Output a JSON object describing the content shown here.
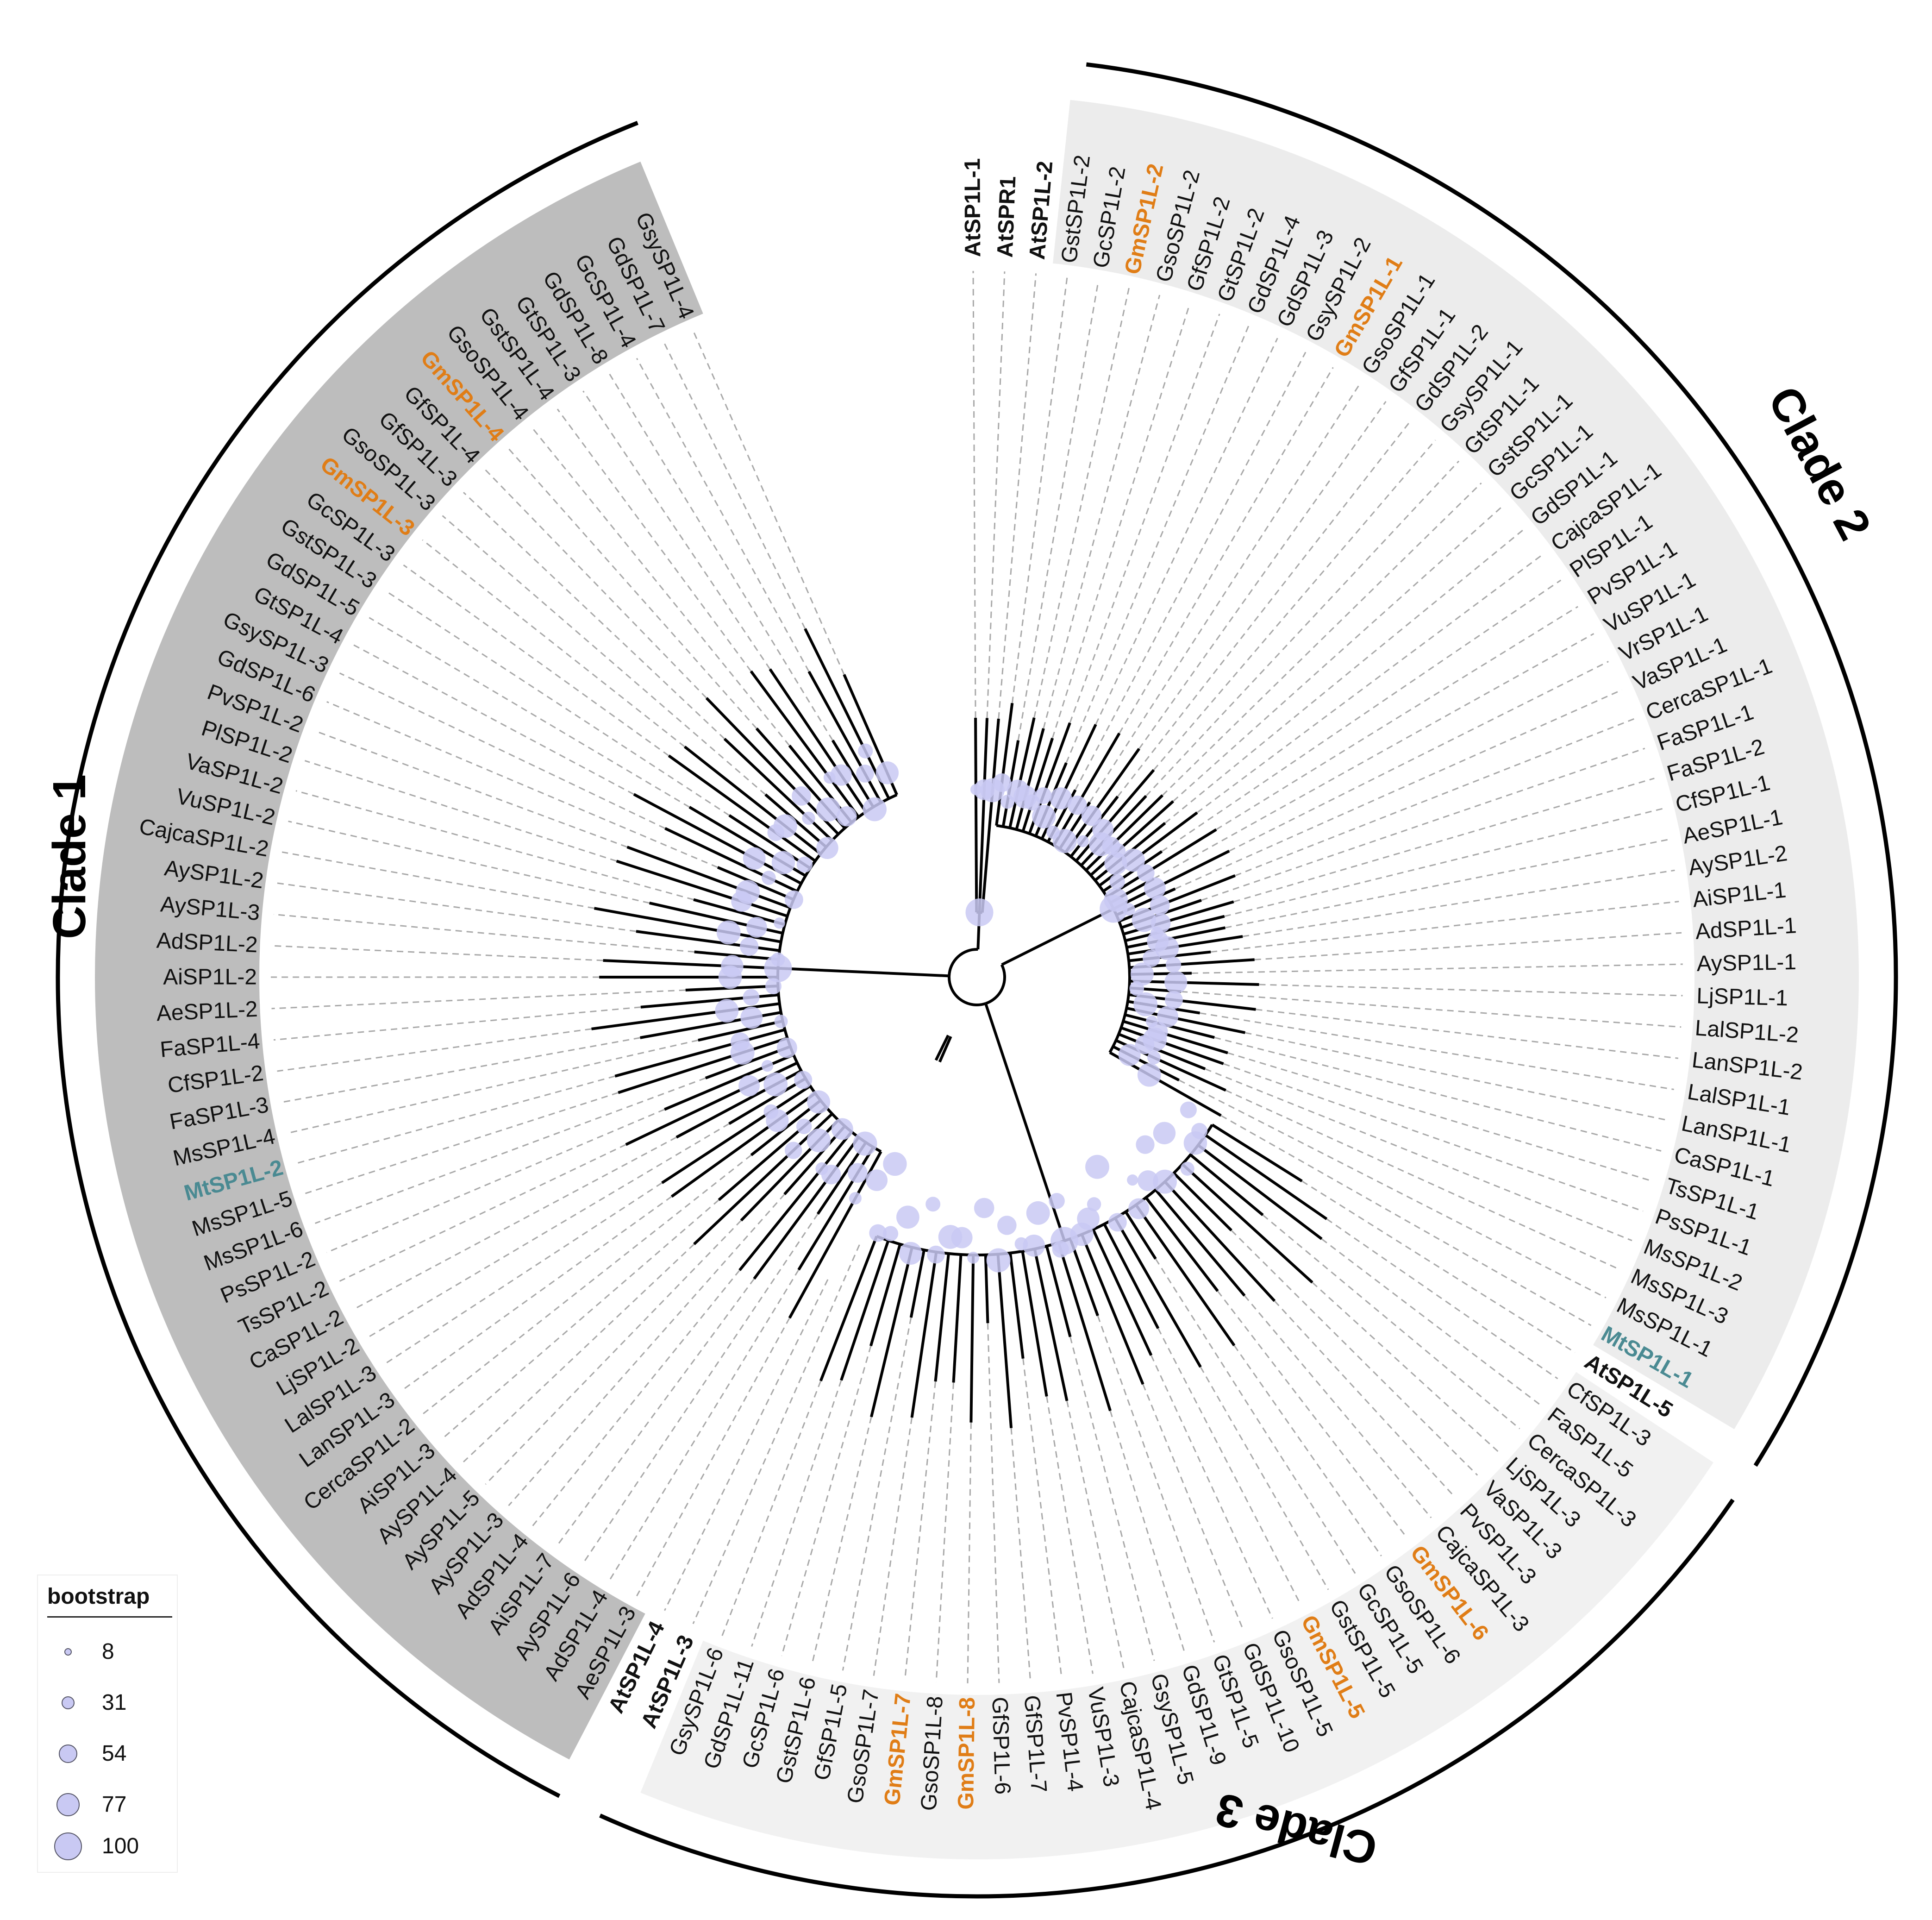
{
  "figure": {
    "clade_labels": [
      "Clade 1",
      "Clade 2",
      "Clade 3"
    ],
    "colors": {
      "soybean": "#e07d16",
      "medicago": "#4a8a92",
      "arabidopsis": "#111111",
      "default": "#111111",
      "clade1_bg": "#bdbdbd",
      "clade2_bg": "#ececec",
      "clade3_bg": "#f1f1f1",
      "bootstrap_fill": "#c9c9f3"
    }
  },
  "leaves": [
    {
      "name": "AtSP1L-1",
      "style": "arabidopsis"
    },
    {
      "name": "AtSPR1",
      "style": "arabidopsis"
    },
    {
      "name": "AtSP1L-2",
      "style": "arabidopsis"
    },
    {
      "name": "GstSP1L-2",
      "style": "default"
    },
    {
      "name": "GcSP1L-2",
      "style": "default"
    },
    {
      "name": "GmSP1L-2",
      "style": "soybean"
    },
    {
      "name": "GsoSP1L-2",
      "style": "default"
    },
    {
      "name": "GfSP1L-2",
      "style": "default"
    },
    {
      "name": "GtSP1L-2",
      "style": "default"
    },
    {
      "name": "GdSP1L-4",
      "style": "default"
    },
    {
      "name": "GdSP1L-3",
      "style": "default"
    },
    {
      "name": "GsySP1L-2",
      "style": "default"
    },
    {
      "name": "GmSP1L-1",
      "style": "soybean"
    },
    {
      "name": "GsoSP1L-1",
      "style": "default"
    },
    {
      "name": "GfSP1L-1",
      "style": "default"
    },
    {
      "name": "GdSP1L-2",
      "style": "default"
    },
    {
      "name": "GsySP1L-1",
      "style": "default"
    },
    {
      "name": "GtSP1L-1",
      "style": "default"
    },
    {
      "name": "GstSP1L-1",
      "style": "default"
    },
    {
      "name": "GcSP1L-1",
      "style": "default"
    },
    {
      "name": "GdSP1L-1",
      "style": "default"
    },
    {
      "name": "CajcaSP1L-1",
      "style": "default"
    },
    {
      "name": "PlSP1L-1",
      "style": "default"
    },
    {
      "name": "PvSP1L-1",
      "style": "default"
    },
    {
      "name": "VuSP1L-1",
      "style": "default"
    },
    {
      "name": "VrSP1L-1",
      "style": "default"
    },
    {
      "name": "VaSP1L-1",
      "style": "default"
    },
    {
      "name": "CercaSP1L-1",
      "style": "default"
    },
    {
      "name": "FaSP1L-1",
      "style": "default"
    },
    {
      "name": "FaSP1L-2",
      "style": "default"
    },
    {
      "name": "CfSP1L-1",
      "style": "default"
    },
    {
      "name": "AeSP1L-1",
      "style": "default"
    },
    {
      "name": "AySP1L-2",
      "style": "default"
    },
    {
      "name": "AiSP1L-1",
      "style": "default"
    },
    {
      "name": "AdSP1L-1",
      "style": "default"
    },
    {
      "name": "AySP1L-1",
      "style": "default"
    },
    {
      "name": "LjSP1L-1",
      "style": "default"
    },
    {
      "name": "LalSP1L-2",
      "style": "default"
    },
    {
      "name": "LanSP1L-2",
      "style": "default"
    },
    {
      "name": "LalSP1L-1",
      "style": "default"
    },
    {
      "name": "LanSP1L-1",
      "style": "default"
    },
    {
      "name": "CaSP1L-1",
      "style": "default"
    },
    {
      "name": "TsSP1L-1",
      "style": "default"
    },
    {
      "name": "PsSP1L-1",
      "style": "default"
    },
    {
      "name": "MsSP1L-2",
      "style": "default"
    },
    {
      "name": "MsSP1L-3",
      "style": "default"
    },
    {
      "name": "MsSP1L-1",
      "style": "default"
    },
    {
      "name": "MtSP1L-1",
      "style": "medicago"
    },
    {
      "name": "AtSP1L-5",
      "style": "arabidopsis"
    },
    {
      "name": "CfSP1L-3",
      "style": "default"
    },
    {
      "name": "FaSP1L-5",
      "style": "default"
    },
    {
      "name": "CercaSP1L-3",
      "style": "default"
    },
    {
      "name": "LjSP1L-3",
      "style": "default"
    },
    {
      "name": "VaSP1L-3",
      "style": "default"
    },
    {
      "name": "PvSP1L-3",
      "style": "default"
    },
    {
      "name": "CajcaSP1L-3",
      "style": "default"
    },
    {
      "name": "GmSP1L-6",
      "style": "soybean"
    },
    {
      "name": "GsoSP1L-6",
      "style": "default"
    },
    {
      "name": "GcSP1L-5",
      "style": "default"
    },
    {
      "name": "GstSP1L-5",
      "style": "default"
    },
    {
      "name": "GmSP1L-5",
      "style": "soybean"
    },
    {
      "name": "GsoSP1L-5",
      "style": "default"
    },
    {
      "name": "GdSP1L-10",
      "style": "default"
    },
    {
      "name": "GtSP1L-5",
      "style": "default"
    },
    {
      "name": "GdSP1L-9",
      "style": "default"
    },
    {
      "name": "GsySP1L-5",
      "style": "default"
    },
    {
      "name": "CajcaSP1L-4",
      "style": "default"
    },
    {
      "name": "VuSP1L-3",
      "style": "default"
    },
    {
      "name": "PvSP1L-4",
      "style": "default"
    },
    {
      "name": "GfSP1L-7",
      "style": "default"
    },
    {
      "name": "GfSP1L-6",
      "style": "default"
    },
    {
      "name": "GmSP1L-8",
      "style": "soybean"
    },
    {
      "name": "GsoSP1L-8",
      "style": "default"
    },
    {
      "name": "GmSP1L-7",
      "style": "soybean"
    },
    {
      "name": "GsoSP1L-7",
      "style": "default"
    },
    {
      "name": "GfSP1L-5",
      "style": "default"
    },
    {
      "name": "GstSP1L-6",
      "style": "default"
    },
    {
      "name": "GcSP1L-6",
      "style": "default"
    },
    {
      "name": "GdSP1L-11",
      "style": "default"
    },
    {
      "name": "GsySP1L-6",
      "style": "default"
    },
    {
      "name": "AtSP1L-3",
      "style": "arabidopsis"
    },
    {
      "name": "AtSP1L-4",
      "style": "arabidopsis"
    },
    {
      "name": "AeSP1L-3",
      "style": "default"
    },
    {
      "name": "AdSP1L-4",
      "style": "default"
    },
    {
      "name": "AySP1L-6",
      "style": "default"
    },
    {
      "name": "AiSP1L-7",
      "style": "default"
    },
    {
      "name": "AdSP1L-4",
      "style": "default"
    },
    {
      "name": "AySP1L-3",
      "style": "default"
    },
    {
      "name": "AySP1L-5",
      "style": "default"
    },
    {
      "name": "AySP1L-4",
      "style": "default"
    },
    {
      "name": "AiSP1L-3",
      "style": "default"
    },
    {
      "name": "CercaSP1L-2",
      "style": "default"
    },
    {
      "name": "LanSP1L-3",
      "style": "default"
    },
    {
      "name": "LalSP1L-3",
      "style": "default"
    },
    {
      "name": "LjSP1L-2",
      "style": "default"
    },
    {
      "name": "CaSP1L-2",
      "style": "default"
    },
    {
      "name": "TsSP1L-2",
      "style": "default"
    },
    {
      "name": "PsSP1L-2",
      "style": "default"
    },
    {
      "name": "MsSP1L-6",
      "style": "default"
    },
    {
      "name": "MsSP1L-5",
      "style": "default"
    },
    {
      "name": "MtSP1L-2",
      "style": "medicago"
    },
    {
      "name": "MsSP1L-4",
      "style": "default"
    },
    {
      "name": "FaSP1L-3",
      "style": "default"
    },
    {
      "name": "CfSP1L-2",
      "style": "default"
    },
    {
      "name": "FaSP1L-4",
      "style": "default"
    },
    {
      "name": "AeSP1L-2",
      "style": "default"
    },
    {
      "name": "AiSP1L-2",
      "style": "default"
    },
    {
      "name": "AdSP1L-2",
      "style": "default"
    },
    {
      "name": "AySP1L-3",
      "style": "default"
    },
    {
      "name": "AySP1L-2",
      "style": "default"
    },
    {
      "name": "CajcaSP1L-2",
      "style": "default"
    },
    {
      "name": "VuSP1L-2",
      "style": "default"
    },
    {
      "name": "VaSP1L-2",
      "style": "default"
    },
    {
      "name": "PlSP1L-2",
      "style": "default"
    },
    {
      "name": "PvSP1L-2",
      "style": "default"
    },
    {
      "name": "GdSP1L-6",
      "style": "default"
    },
    {
      "name": "GsySP1L-3",
      "style": "default"
    },
    {
      "name": "GtSP1L-4",
      "style": "default"
    },
    {
      "name": "GdSP1L-5",
      "style": "default"
    },
    {
      "name": "GstSP1L-3",
      "style": "default"
    },
    {
      "name": "GcSP1L-3",
      "style": "default"
    },
    {
      "name": "GmSP1L-3",
      "style": "soybean"
    },
    {
      "name": "GsoSP1L-3",
      "style": "default"
    },
    {
      "name": "GfSP1L-3",
      "style": "default"
    },
    {
      "name": "GfSP1L-4",
      "style": "default"
    },
    {
      "name": "GmSP1L-4",
      "style": "soybean"
    },
    {
      "name": "GsoSP1L-4",
      "style": "default"
    },
    {
      "name": "GstSP1L-4",
      "style": "default"
    },
    {
      "name": "GtSP1L-3",
      "style": "default"
    },
    {
      "name": "GdSP1L-8",
      "style": "default"
    },
    {
      "name": "GcSP1L-4",
      "style": "default"
    },
    {
      "name": "GdSP1L-7",
      "style": "default"
    },
    {
      "name": "GsySP1L-4",
      "style": "default"
    }
  ],
  "legend": {
    "title": "bootstrap",
    "values": [
      8,
      31,
      54,
      77,
      100
    ]
  }
}
